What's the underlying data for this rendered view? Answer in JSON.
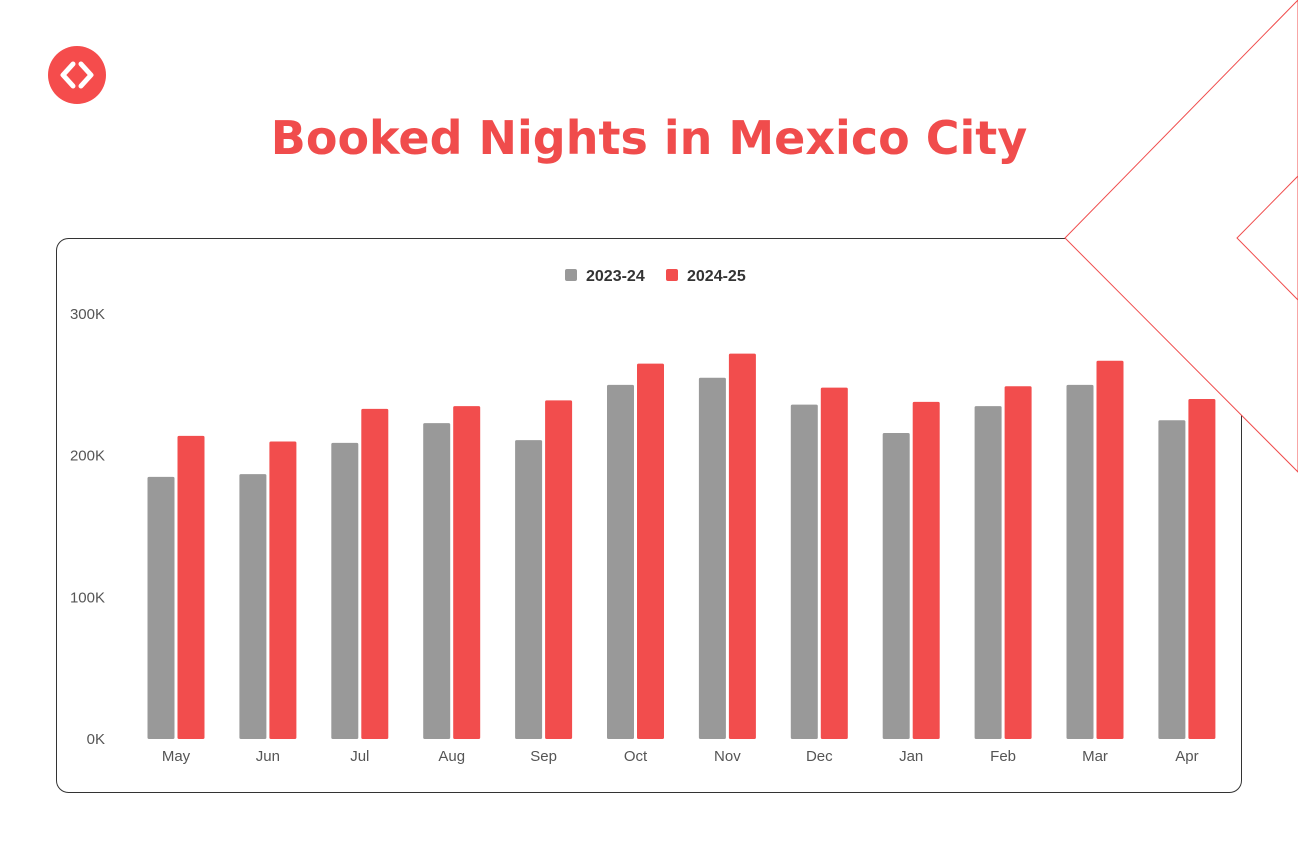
{
  "logo": {
    "icon": "code-brackets-icon",
    "color": "#f54c4c"
  },
  "chart_data": {
    "type": "bar",
    "title": "Booked Nights in Mexico City",
    "xlabel": "",
    "ylabel": "",
    "ylim": [
      0,
      300000
    ],
    "yticks": [
      0,
      100000,
      200000,
      300000
    ],
    "ytick_labels": [
      "0K",
      "100K",
      "200K",
      "300K"
    ],
    "grid": false,
    "legend_position": "top-center",
    "categories": [
      "May",
      "Jun",
      "Jul",
      "Aug",
      "Sep",
      "Oct",
      "Nov",
      "Dec",
      "Jan",
      "Feb",
      "Mar",
      "Apr"
    ],
    "series": [
      {
        "name": "2023-24",
        "color": "#999999",
        "values": [
          185000,
          187000,
          209000,
          223000,
          211000,
          250000,
          255000,
          236000,
          216000,
          235000,
          250000,
          225000
        ]
      },
      {
        "name": "2024-25",
        "color": "#f24d4d",
        "values": [
          214000,
          210000,
          233000,
          235000,
          239000,
          265000,
          272000,
          248000,
          238000,
          249000,
          267000,
          240000
        ]
      }
    ]
  }
}
